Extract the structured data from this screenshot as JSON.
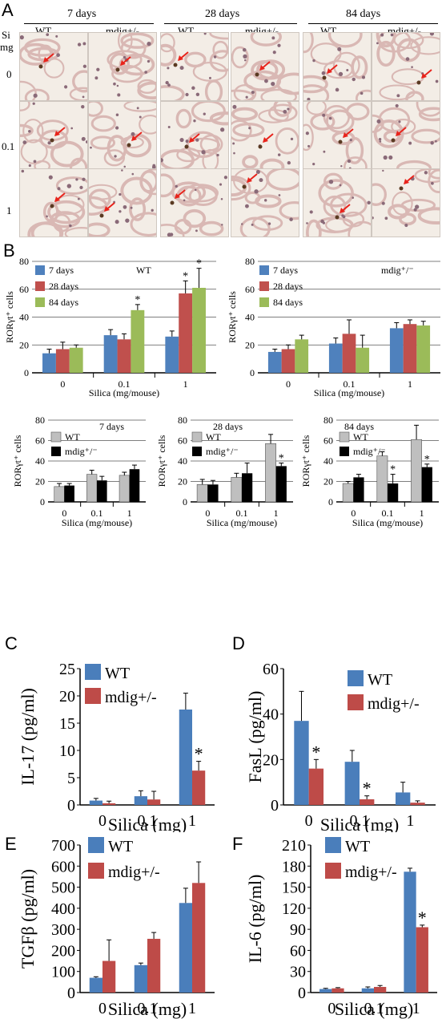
{
  "panels": {
    "A": "A",
    "B": "B",
    "C": "C",
    "D": "D",
    "E": "E",
    "F": "F"
  },
  "panelA": {
    "day_headers": [
      "7 days",
      "28 days",
      "84 days"
    ],
    "genotypes": [
      "WT",
      "mdig+/-"
    ],
    "si_label_1": "Si",
    "si_label_2": "mg",
    "rows": [
      "0",
      "0.1",
      "1"
    ],
    "colors": {
      "tissue_pink": "#d9b8b4",
      "bg": "#f3ede6",
      "arrow": "#e8231b"
    }
  },
  "chart_data": [
    {
      "id": "B1",
      "type": "bar",
      "categories": [
        "0",
        "0.1",
        "1"
      ],
      "series": [
        {
          "name": "7 days",
          "values": [
            14,
            27,
            26
          ],
          "errors": [
            3,
            4,
            4
          ],
          "color": "#4f81bd"
        },
        {
          "name": "28 days",
          "values": [
            17,
            24,
            57
          ],
          "errors": [
            5,
            4,
            9
          ],
          "color": "#c0504d"
        },
        {
          "name": "84 days",
          "values": [
            18,
            45,
            61
          ],
          "errors": [
            2,
            4,
            14
          ],
          "color": "#9bbb59"
        }
      ],
      "stars": [
        [
          1,
          2
        ],
        [
          2,
          1
        ],
        [
          2,
          2
        ]
      ],
      "annotation": "WT",
      "xlabel": "Silica (mg/mouse)",
      "ylabel": "RORγt⁺ cells",
      "yticks": [
        "0",
        "20",
        "40",
        "60",
        "80"
      ],
      "ylim": [
        0,
        80
      ]
    },
    {
      "id": "B2",
      "type": "bar",
      "categories": [
        "0",
        "0.1",
        "1"
      ],
      "series": [
        {
          "name": "7 days",
          "values": [
            15,
            21,
            32
          ],
          "errors": [
            2,
            4,
            4
          ],
          "color": "#4f81bd"
        },
        {
          "name": "28 days",
          "values": [
            17,
            28,
            35
          ],
          "errors": [
            3,
            10,
            3
          ],
          "color": "#c0504d"
        },
        {
          "name": "84 days",
          "values": [
            24,
            18,
            34
          ],
          "errors": [
            3,
            9,
            3
          ],
          "color": "#9bbb59"
        }
      ],
      "stars": [],
      "annotation": "mdig⁺/⁻",
      "xlabel": "Silica (mg/mouse)",
      "ylabel": "RORγt⁺ cells",
      "yticks": [
        "0",
        "20",
        "40",
        "60",
        "80"
      ],
      "ylim": [
        0,
        80
      ]
    },
    {
      "id": "B3",
      "type": "bar",
      "title": "7 days",
      "categories": [
        "0",
        "0.1",
        "1"
      ],
      "series": [
        {
          "name": "WT",
          "values": [
            15,
            27,
            26
          ],
          "errors": [
            3,
            4,
            3
          ],
          "color": "#bfbfbf"
        },
        {
          "name": "mdig⁺/⁻",
          "values": [
            16,
            21,
            32
          ],
          "errors": [
            2,
            4,
            4
          ],
          "color": "#000000"
        }
      ],
      "stars": [],
      "xlabel": "Silica (mg/mouse)",
      "ylabel": "RORγt⁺ cells",
      "yticks": [
        "0",
        "20",
        "40",
        "60",
        "80"
      ],
      "ylim": [
        0,
        80
      ]
    },
    {
      "id": "B4",
      "type": "bar",
      "title": "28 days",
      "categories": [
        "0",
        "0.1",
        "1"
      ],
      "series": [
        {
          "name": "WT",
          "values": [
            17,
            24,
            57
          ],
          "errors": [
            5,
            4,
            9
          ],
          "color": "#bfbfbf"
        },
        {
          "name": "mdig⁺/⁻",
          "values": [
            17,
            28,
            35
          ],
          "errors": [
            4,
            10,
            3
          ],
          "color": "#000000"
        }
      ],
      "stars": [
        [
          2,
          1
        ]
      ],
      "xlabel": "Silica (mg/mouse)",
      "ylabel": "RORγt⁺ cells",
      "yticks": [
        "0",
        "20",
        "40",
        "60",
        "80"
      ],
      "ylim": [
        0,
        80
      ]
    },
    {
      "id": "B5",
      "type": "bar",
      "title": "84 days",
      "categories": [
        "0",
        "0.1",
        "1"
      ],
      "series": [
        {
          "name": "WT",
          "values": [
            18,
            45,
            61
          ],
          "errors": [
            2,
            4,
            14
          ],
          "color": "#bfbfbf"
        },
        {
          "name": "mdig⁺/⁻",
          "values": [
            24,
            18,
            34
          ],
          "errors": [
            3,
            9,
            3
          ],
          "color": "#000000"
        }
      ],
      "stars": [
        [
          1,
          1
        ],
        [
          2,
          1
        ]
      ],
      "xlabel": "Silica (mg/mouse)",
      "ylabel": "RORγt⁺ cells",
      "yticks": [
        "0",
        "20",
        "40",
        "60",
        "80"
      ],
      "ylim": [
        0,
        80
      ]
    },
    {
      "id": "C",
      "type": "bar",
      "categories": [
        "0",
        "0.1",
        "1"
      ],
      "series": [
        {
          "name": "WT",
          "values": [
            0.8,
            1.6,
            17.5
          ],
          "errors": [
            0.4,
            1.0,
            3.0
          ],
          "color": "#4a7ebb"
        },
        {
          "name": "mdig+/-",
          "values": [
            0.3,
            1.0,
            6.3
          ],
          "errors": [
            0.4,
            1.5,
            1.7
          ],
          "color": "#be4b48"
        }
      ],
      "stars": [
        [
          2,
          1
        ]
      ],
      "xlabel": "Silica (mg)",
      "ylabel": "IL-17 (pg/ml)",
      "yticks": [
        "0",
        "5",
        "10",
        "15",
        "20",
        "25"
      ],
      "ylim": [
        0,
        25
      ]
    },
    {
      "id": "D",
      "type": "bar",
      "categories": [
        "0",
        "0.1",
        "1"
      ],
      "series": [
        {
          "name": "WT",
          "values": [
            37,
            19,
            5.5
          ],
          "errors": [
            13,
            5,
            4.5
          ],
          "color": "#4a7ebb"
        },
        {
          "name": "mdig+/-",
          "values": [
            16,
            2.5,
            1
          ],
          "errors": [
            4,
            1.5,
            0.8
          ],
          "color": "#be4b48"
        }
      ],
      "stars": [
        [
          0,
          1
        ],
        [
          1,
          1
        ]
      ],
      "xlabel": "Silica (mg)",
      "ylabel": "FasL (pg/ml)",
      "yticks": [
        "0",
        "20",
        "40",
        "60"
      ],
      "ylim": [
        0,
        60
      ]
    },
    {
      "id": "E",
      "type": "bar",
      "categories": [
        "0",
        "0.1",
        "1"
      ],
      "series": [
        {
          "name": "WT",
          "values": [
            70,
            130,
            425
          ],
          "errors": [
            5,
            10,
            70
          ],
          "color": "#4a7ebb"
        },
        {
          "name": "mdig+/-",
          "values": [
            150,
            255,
            520
          ],
          "errors": [
            100,
            30,
            100
          ],
          "color": "#be4b48"
        }
      ],
      "stars": [],
      "xlabel": "Silica (mg)",
      "ylabel": "TGFβ (pg/ml)",
      "yticks": [
        "0",
        "100",
        "200",
        "300",
        "400",
        "500",
        "600",
        "700"
      ],
      "ylim": [
        0,
        700
      ]
    },
    {
      "id": "F",
      "type": "bar",
      "categories": [
        "0",
        "0.1",
        "1"
      ],
      "series": [
        {
          "name": "WT",
          "values": [
            5,
            6,
            172
          ],
          "errors": [
            1,
            2,
            5
          ],
          "color": "#4a7ebb"
        },
        {
          "name": "mdig+/-",
          "values": [
            6,
            8,
            93
          ],
          "errors": [
            1,
            2,
            3
          ],
          "color": "#be4b48"
        }
      ],
      "stars": [
        [
          2,
          1
        ]
      ],
      "xlabel": "Silica (mg)",
      "ylabel": "IL-6 (pg/ml)",
      "yticks": [
        "0",
        "30",
        "60",
        "90",
        "120",
        "150",
        "180",
        "210"
      ],
      "ylim": [
        0,
        210
      ]
    }
  ]
}
